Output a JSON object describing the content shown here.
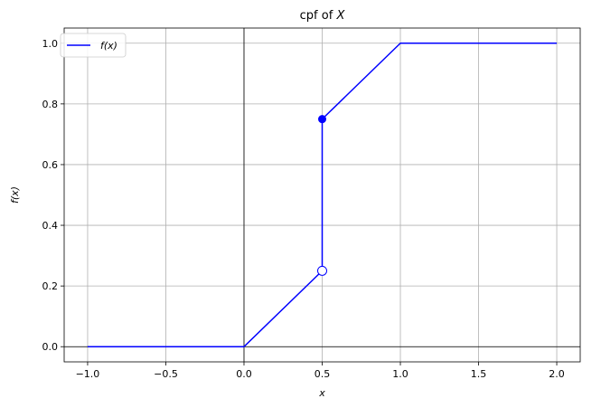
{
  "chart_data": {
    "type": "line",
    "title": "cpf of X",
    "title_prefix": "cpf of ",
    "title_var": "X",
    "xlabel": "x",
    "ylabel": "f(x)",
    "xlim": [
      -1.15,
      2.15
    ],
    "ylim": [
      -0.05,
      1.05
    ],
    "xticks": [
      -1.0,
      -0.5,
      0.0,
      0.5,
      1.0,
      1.5,
      2.0
    ],
    "xtick_labels": [
      "−1.0",
      "−0.5",
      "0.0",
      "0.5",
      "1.0",
      "1.5",
      "2.0"
    ],
    "yticks": [
      0.0,
      0.2,
      0.4,
      0.6,
      0.8,
      1.0
    ],
    "ytick_labels": [
      "0.0",
      "0.2",
      "0.4",
      "0.6",
      "0.8",
      "1.0"
    ],
    "grid": true,
    "legend_position": "top-left",
    "color": "#0000ff",
    "series": [
      {
        "name": "f(x)",
        "x": [
          -1.0,
          0.0,
          0.5,
          0.5,
          1.0,
          2.0
        ],
        "y": [
          0.0,
          0.0,
          0.25,
          0.75,
          1.0,
          1.0
        ]
      }
    ],
    "markers": [
      {
        "x": 0.5,
        "y": 0.75,
        "style": "filled"
      },
      {
        "x": 0.5,
        "y": 0.25,
        "style": "open"
      }
    ]
  }
}
